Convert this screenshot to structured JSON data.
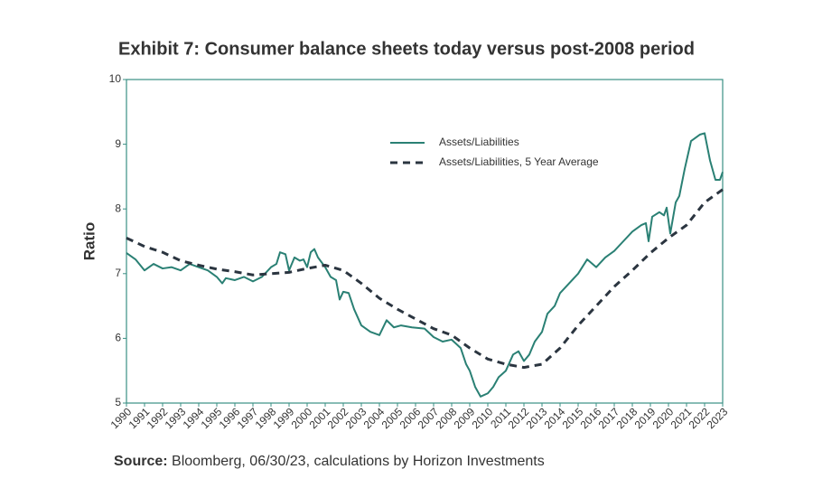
{
  "chart_data": {
    "type": "line",
    "title": "Exhibit 7: Consumer balance sheets today versus post-2008 period",
    "y_label": "Ratio",
    "source_label": "Source:",
    "source_text": "Bloomberg, 06/30/23, calculations by Horizon Investments",
    "xlim": [
      1990,
      2023
    ],
    "xticks": [
      1990,
      1991,
      1992,
      1993,
      1994,
      1995,
      1996,
      1997,
      1998,
      1999,
      2000,
      2001,
      2002,
      2003,
      2004,
      2005,
      2006,
      2007,
      2008,
      2009,
      2010,
      2011,
      2012,
      2013,
      2014,
      2015,
      2016,
      2017,
      2018,
      2019,
      2020,
      2021,
      2022,
      2023
    ],
    "ylim": [
      5,
      10
    ],
    "yticks": [
      5,
      6,
      7,
      8,
      9,
      10
    ],
    "legend": "upper right",
    "frame_color": "#3a8f84",
    "series": [
      {
        "name": "Assets/Liabilities",
        "color": "#2a8074",
        "line_style": "solid",
        "x": [
          1990,
          1990.5,
          1991,
          1991.5,
          1992,
          1992.5,
          1993,
          1993.5,
          1994,
          1994.5,
          1995,
          1995.3,
          1995.5,
          1996,
          1996.5,
          1997,
          1997.5,
          1998,
          1998.3,
          1998.5,
          1998.8,
          1999,
          1999.3,
          1999.6,
          1999.8,
          2000,
          2000.2,
          2000.4,
          2000.6,
          2001,
          2001.3,
          2001.6,
          2001.8,
          2002,
          2002.3,
          2002.6,
          2003,
          2003.5,
          2004,
          2004.4,
          2004.8,
          2005.2,
          2005.8,
          2006.5,
          2007,
          2007.5,
          2008,
          2008.5,
          2008.8,
          2009,
          2009.3,
          2009.6,
          2010,
          2010.3,
          2010.6,
          2011,
          2011.4,
          2011.7,
          2012,
          2012.3,
          2012.6,
          2013,
          2013.3,
          2013.7,
          2014,
          2014.5,
          2015,
          2015.5,
          2016,
          2016.5,
          2017,
          2017.5,
          2018,
          2018.5,
          2018.75,
          2018.9,
          2019.1,
          2019.5,
          2019.75,
          2019.9,
          2020.1,
          2020.4,
          2020.6,
          2020.9,
          2021.25,
          2021.5,
          2021.75,
          2022,
          2022.3,
          2022.6,
          2022.85,
          2023
        ],
        "values": [
          7.32,
          7.22,
          7.05,
          7.15,
          7.08,
          7.1,
          7.05,
          7.15,
          7.1,
          7.05,
          6.95,
          6.85,
          6.93,
          6.9,
          6.95,
          6.88,
          6.95,
          7.1,
          7.15,
          7.33,
          7.3,
          7.05,
          7.25,
          7.2,
          7.22,
          7.1,
          7.33,
          7.38,
          7.25,
          7.1,
          6.95,
          6.9,
          6.6,
          6.72,
          6.7,
          6.45,
          6.2,
          6.1,
          6.05,
          6.28,
          6.17,
          6.2,
          6.17,
          6.15,
          6.02,
          5.95,
          5.98,
          5.85,
          5.6,
          5.5,
          5.25,
          5.1,
          5.15,
          5.25,
          5.4,
          5.5,
          5.75,
          5.8,
          5.65,
          5.75,
          5.95,
          6.1,
          6.38,
          6.5,
          6.7,
          6.85,
          7.0,
          7.22,
          7.1,
          7.25,
          7.35,
          7.5,
          7.65,
          7.75,
          7.78,
          7.5,
          7.88,
          7.95,
          7.9,
          8.02,
          7.62,
          8.1,
          8.2,
          8.62,
          9.05,
          9.1,
          9.15,
          9.17,
          8.75,
          8.45,
          8.45,
          8.57
        ]
      },
      {
        "name": "Assets/Liabilities, 5 Year Average",
        "color": "#2b3540",
        "line_style": "dashed",
        "x": [
          1990,
          1991,
          1992,
          1993,
          1994,
          1995,
          1996,
          1997,
          1998,
          1999,
          2000,
          2001,
          2002,
          2003,
          2004,
          2005,
          2006,
          2007,
          2008,
          2009,
          2010,
          2011,
          2012,
          2013,
          2014,
          2015,
          2016,
          2017,
          2018,
          2019,
          2020,
          2021,
          2022,
          2023
        ],
        "values": [
          7.55,
          7.42,
          7.33,
          7.2,
          7.13,
          7.07,
          7.03,
          6.98,
          7.0,
          7.02,
          7.08,
          7.13,
          7.05,
          6.85,
          6.62,
          6.45,
          6.3,
          6.15,
          6.05,
          5.85,
          5.68,
          5.6,
          5.55,
          5.6,
          5.85,
          6.2,
          6.5,
          6.8,
          7.05,
          7.32,
          7.55,
          7.75,
          8.1,
          8.3
        ]
      }
    ]
  }
}
